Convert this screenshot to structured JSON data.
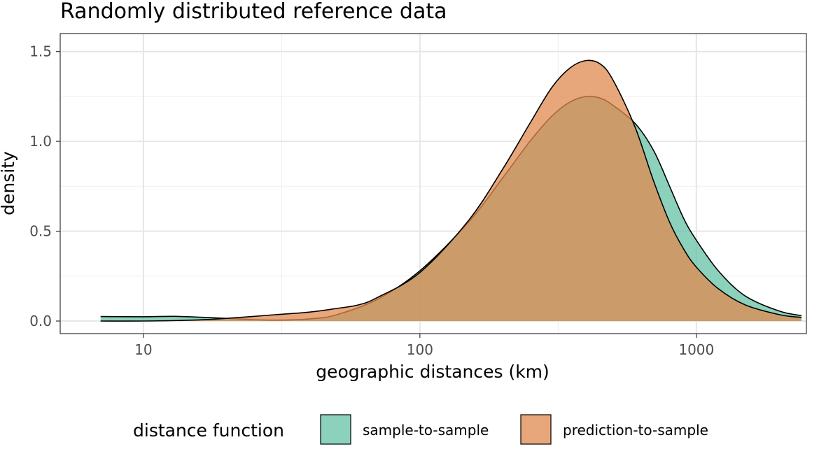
{
  "chart_data": {
    "type": "area",
    "title": "Randomly distributed reference data",
    "xlabel": "geographic distances (km)",
    "ylabel": "density",
    "x_scale": "log10",
    "xlim": [
      5,
      2500
    ],
    "ylim": [
      -0.07,
      1.6
    ],
    "x_ticks": [
      10,
      100,
      1000
    ],
    "x_tick_labels": [
      "10",
      "100",
      "1000"
    ],
    "y_ticks": [
      0,
      0.5,
      1,
      1.5
    ],
    "y_tick_labels": [
      "0.0",
      "0.5",
      "1.0",
      "1.5"
    ],
    "grid": true,
    "legend": {
      "title": "distance function",
      "position": "bottom",
      "entries": [
        "sample-to-sample",
        "prediction-to-sample"
      ]
    },
    "series": [
      {
        "name": "sample-to-sample",
        "color": "#66c2a5",
        "opacity": 0.75,
        "points": [
          [
            7,
            0.025
          ],
          [
            10,
            0.024
          ],
          [
            13,
            0.026
          ],
          [
            18,
            0.018
          ],
          [
            25,
            0.008
          ],
          [
            30,
            0.005
          ],
          [
            40,
            0.012
          ],
          [
            50,
            0.035
          ],
          [
            70,
            0.12
          ],
          [
            100,
            0.28
          ],
          [
            150,
            0.55
          ],
          [
            200,
            0.8
          ],
          [
            250,
            1.0
          ],
          [
            300,
            1.14
          ],
          [
            350,
            1.22
          ],
          [
            400,
            1.25
          ],
          [
            450,
            1.24
          ],
          [
            500,
            1.2
          ],
          [
            600,
            1.1
          ],
          [
            700,
            0.95
          ],
          [
            800,
            0.75
          ],
          [
            900,
            0.57
          ],
          [
            1000,
            0.45
          ],
          [
            1200,
            0.28
          ],
          [
            1500,
            0.14
          ],
          [
            2000,
            0.055
          ],
          [
            2400,
            0.03
          ]
        ]
      },
      {
        "name": "prediction-to-sample",
        "color": "#e08a4e",
        "opacity": 0.75,
        "points": [
          [
            7,
            0.0
          ],
          [
            10,
            0.0
          ],
          [
            15,
            0.005
          ],
          [
            20,
            0.015
          ],
          [
            30,
            0.035
          ],
          [
            40,
            0.05
          ],
          [
            50,
            0.07
          ],
          [
            60,
            0.09
          ],
          [
            70,
            0.13
          ],
          [
            100,
            0.27
          ],
          [
            150,
            0.56
          ],
          [
            200,
            0.85
          ],
          [
            250,
            1.1
          ],
          [
            300,
            1.3
          ],
          [
            350,
            1.41
          ],
          [
            400,
            1.45
          ],
          [
            450,
            1.43
          ],
          [
            500,
            1.34
          ],
          [
            600,
            1.08
          ],
          [
            700,
            0.78
          ],
          [
            800,
            0.55
          ],
          [
            900,
            0.4
          ],
          [
            1000,
            0.3
          ],
          [
            1200,
            0.18
          ],
          [
            1500,
            0.09
          ],
          [
            2000,
            0.035
          ],
          [
            2400,
            0.02
          ]
        ]
      }
    ]
  }
}
